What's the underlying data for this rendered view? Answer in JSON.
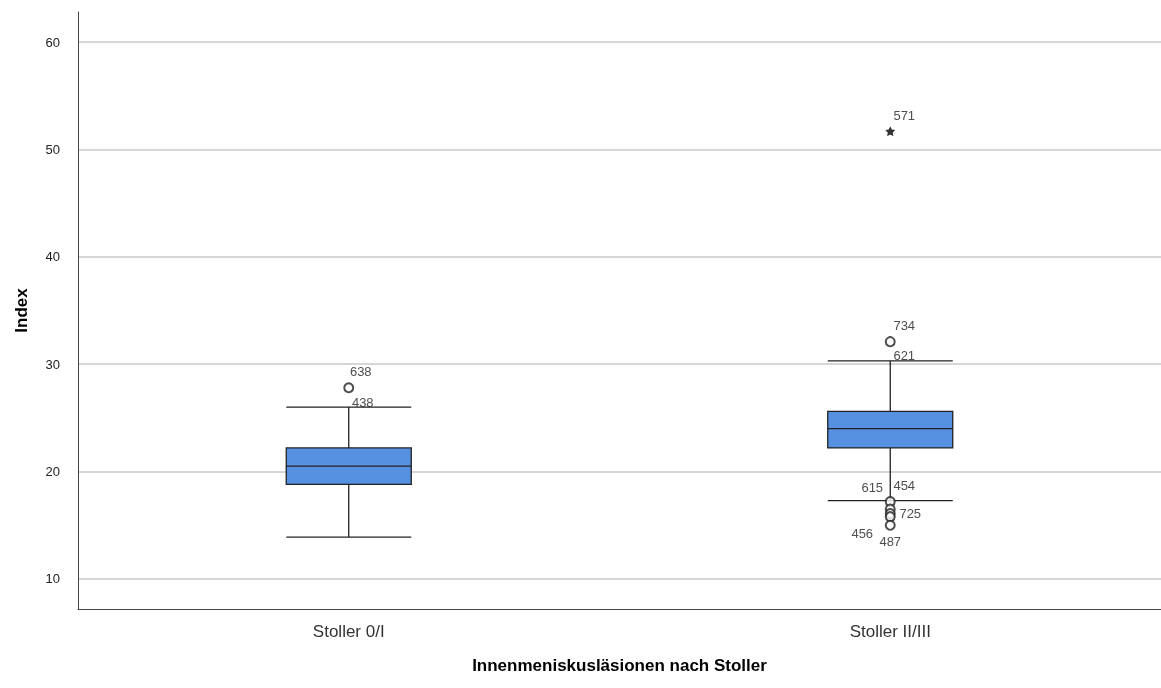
{
  "chart_data": {
    "type": "box",
    "xlabel": "Innenmeniskusläsionen nach Stoller",
    "ylabel": "Index",
    "categories": [
      "Stoller 0/I",
      "Stoller II/III"
    ],
    "series": [
      {
        "color": "#5591e0",
        "boxes": [
          {
            "low": 13.9,
            "q1": 18.8,
            "median": 20.5,
            "q3": 22.2,
            "high": 26.0
          },
          {
            "low": 17.3,
            "q1": 22.2,
            "median": 24.0,
            "q3": 25.6,
            "high": 30.3
          }
        ]
      },
      {
        "type": "scatter",
        "marker": "circle",
        "color": "#222222",
        "x": [
          "Stoller 0/I",
          "Stoller II/III",
          "Stoller II/III",
          "Stoller II/III",
          "Stoller II/III",
          "Stoller II/III",
          "Stoller II/III"
        ],
        "values": [
          27.8,
          32.1,
          17.2,
          16.5,
          16.1,
          15.8,
          15.0
        ]
      },
      {
        "type": "scatter",
        "marker": "star",
        "color": "#000000",
        "x": [
          "Stoller II/III"
        ],
        "values": [
          51.7
        ]
      }
    ],
    "ylim": [
      7.2,
      62.8
    ],
    "yticks": [
      10,
      20,
      30,
      40,
      50,
      60
    ],
    "grid": "y",
    "annotations": [
      {
        "text": "638",
        "x": "Stoller 0/I",
        "y": 27.8
      },
      {
        "text": "438",
        "x": "Stoller 0/I",
        "y": 26.0
      },
      {
        "text": "571",
        "x": "Stoller II/III",
        "y": 51.7
      },
      {
        "text": "734",
        "x": "Stoller II/III",
        "y": 32.1
      },
      {
        "text": "621",
        "x": "Stoller II/III",
        "y": 30.3
      },
      {
        "text": "615",
        "x": "Stoller II/III",
        "y": 17.2
      },
      {
        "text": "454",
        "x": "Stoller II/III",
        "y": 17.2
      },
      {
        "text": "725",
        "x": "Stoller II/III",
        "y": 16.1
      },
      {
        "text": "456",
        "x": "Stoller II/III",
        "y": 15.0
      },
      {
        "text": "487",
        "x": "Stoller II/III",
        "y": 15.0
      }
    ]
  }
}
